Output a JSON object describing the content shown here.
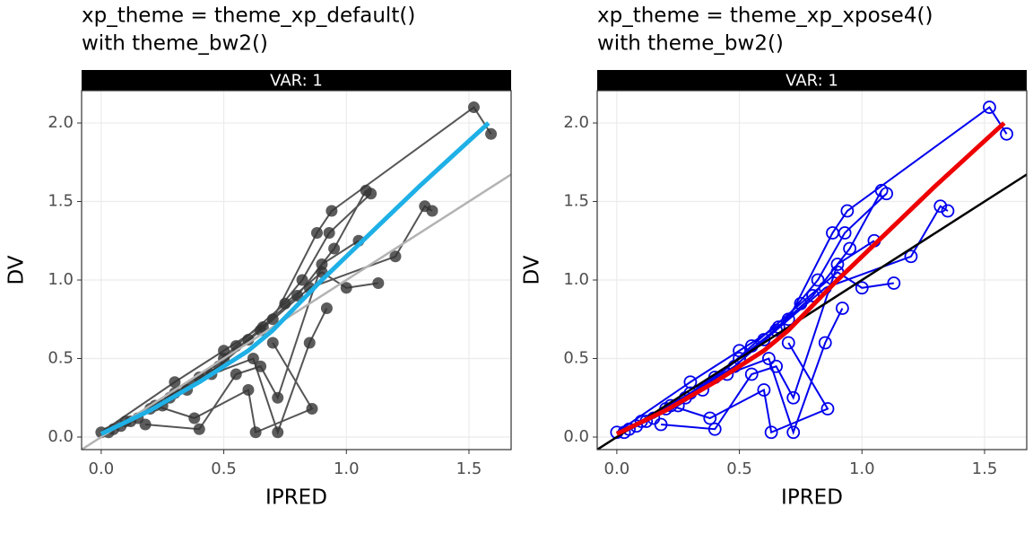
{
  "chart_data": [
    {
      "type": "scatter",
      "title": [
        "xp_theme = theme_xp_default()",
        "with theme_bw2()"
      ],
      "strip": "VAR: 1",
      "x_label": "IPRED",
      "y_label": "DV",
      "xlim": [
        -0.08,
        1.672
      ],
      "ylim": [
        -0.08,
        2.206
      ],
      "xticks": [
        {
          "value": 0,
          "label": "0.0"
        },
        {
          "value": 0.5,
          "label": "0.5"
        },
        {
          "value": 1,
          "label": "1.0"
        },
        {
          "value": 1.5,
          "label": "1.5"
        }
      ],
      "yticks": [
        {
          "value": 0,
          "label": "0.0"
        },
        {
          "value": 0.5,
          "label": "0.5"
        },
        {
          "value": 1,
          "label": "1.0"
        },
        {
          "value": 1.5,
          "label": "1.5"
        },
        {
          "value": 2,
          "label": "2.0"
        }
      ],
      "grid": true,
      "colors": {
        "point": "#333333",
        "point_fill": "#333333",
        "line": "#555555",
        "smooth": "#1eb0e6",
        "reference": "#b3b3b3"
      },
      "reference_line": {
        "intercept": 0,
        "slope": 1
      },
      "smooth": {
        "x": [
          0,
          0.2,
          0.4,
          0.6,
          0.7,
          0.9,
          1.1,
          1.3,
          1.58
        ],
        "values": [
          0.02,
          0.17,
          0.35,
          0.55,
          0.68,
          1.0,
          1.3,
          1.6,
          2.0
        ]
      },
      "individuals": [
        {
          "x": [
            0.05,
            0.2,
            0.4,
            0.6,
            0.8,
            0.95,
            1.08
          ],
          "values": [
            0.05,
            0.18,
            0.38,
            0.62,
            0.9,
            1.2,
            1.57
          ]
        },
        {
          "x": [
            0.03,
            0.25,
            0.45,
            0.62,
            0.72,
            0.85,
            0.92
          ],
          "values": [
            0.03,
            0.2,
            0.4,
            0.5,
            0.03,
            0.6,
            0.82
          ]
        },
        {
          "x": [
            0.1,
            0.3,
            0.5,
            0.66,
            0.82,
            0.93,
            1.1
          ],
          "values": [
            0.1,
            0.28,
            0.5,
            0.7,
            1.0,
            1.3,
            1.55
          ]
        },
        {
          "x": [
            0.08,
            0.22,
            0.38,
            0.6,
            0.63,
            0.86,
            0.7
          ],
          "values": [
            0.07,
            0.2,
            0.12,
            0.3,
            0.03,
            0.18,
            0.6
          ]
        },
        {
          "x": [
            0.15,
            0.35,
            0.55,
            0.75,
            0.9,
            1.0,
            1.13
          ],
          "values": [
            0.12,
            0.3,
            0.58,
            0.85,
            1.05,
            0.95,
            0.98
          ]
        },
        {
          "x": [
            0.12,
            0.28,
            0.48,
            0.65,
            0.85,
            1.2,
            1.32,
            1.35
          ],
          "values": [
            0.1,
            0.25,
            0.45,
            0.68,
            0.95,
            1.15,
            1.47,
            1.44
          ]
        },
        {
          "x": [
            0.18,
            0.4,
            0.55,
            0.65,
            0.72,
            0.9,
            1.05
          ],
          "values": [
            0.08,
            0.05,
            0.4,
            0.45,
            0.25,
            1.1,
            1.25
          ]
        },
        {
          "x": [
            0.0,
            0.3,
            0.5,
            0.7,
            0.88,
            0.94,
            1.52,
            1.59
          ],
          "values": [
            0.03,
            0.35,
            0.55,
            0.75,
            1.3,
            1.44,
            2.1,
            1.93
          ]
        }
      ]
    },
    {
      "type": "scatter",
      "title": [
        "xp_theme = theme_xp_xpose4()",
        "with theme_bw2()"
      ],
      "strip": "VAR: 1",
      "x_label": "IPRED",
      "y_label": "DV",
      "xlim": [
        -0.08,
        1.672
      ],
      "ylim": [
        -0.08,
        2.206
      ],
      "xticks": [
        {
          "value": 0,
          "label": "0.0"
        },
        {
          "value": 0.5,
          "label": "0.5"
        },
        {
          "value": 1,
          "label": "1.0"
        },
        {
          "value": 1.5,
          "label": "1.5"
        }
      ],
      "yticks": [
        {
          "value": 0,
          "label": "0.0"
        },
        {
          "value": 0.5,
          "label": "0.5"
        },
        {
          "value": 1,
          "label": "1.0"
        },
        {
          "value": 1.5,
          "label": "1.5"
        },
        {
          "value": 2,
          "label": "2.0"
        }
      ],
      "grid": true,
      "colors": {
        "point": "#0000ee",
        "point_fill": null,
        "line": "#0000ee",
        "smooth": "#ee0000",
        "reference": "#000000"
      },
      "reference_line": {
        "intercept": 0,
        "slope": 1
      },
      "smooth": {
        "x": [
          0,
          0.2,
          0.4,
          0.6,
          0.7,
          0.9,
          1.1,
          1.3,
          1.58
        ],
        "values": [
          0.02,
          0.17,
          0.35,
          0.55,
          0.68,
          1.0,
          1.3,
          1.6,
          2.0
        ]
      },
      "individuals": [
        {
          "x": [
            0.05,
            0.2,
            0.4,
            0.6,
            0.8,
            0.95,
            1.08
          ],
          "values": [
            0.05,
            0.18,
            0.38,
            0.62,
            0.9,
            1.2,
            1.57
          ]
        },
        {
          "x": [
            0.03,
            0.25,
            0.45,
            0.62,
            0.72,
            0.85,
            0.92
          ],
          "values": [
            0.03,
            0.2,
            0.4,
            0.5,
            0.03,
            0.6,
            0.82
          ]
        },
        {
          "x": [
            0.1,
            0.3,
            0.5,
            0.66,
            0.82,
            0.93,
            1.1
          ],
          "values": [
            0.1,
            0.28,
            0.5,
            0.7,
            1.0,
            1.3,
            1.55
          ]
        },
        {
          "x": [
            0.08,
            0.22,
            0.38,
            0.6,
            0.63,
            0.86,
            0.7
          ],
          "values": [
            0.07,
            0.2,
            0.12,
            0.3,
            0.03,
            0.18,
            0.6
          ]
        },
        {
          "x": [
            0.15,
            0.35,
            0.55,
            0.75,
            0.9,
            1.0,
            1.13
          ],
          "values": [
            0.12,
            0.3,
            0.58,
            0.85,
            1.05,
            0.95,
            0.98
          ]
        },
        {
          "x": [
            0.12,
            0.28,
            0.48,
            0.65,
            0.85,
            1.2,
            1.32,
            1.35
          ],
          "values": [
            0.1,
            0.25,
            0.45,
            0.68,
            0.95,
            1.15,
            1.47,
            1.44
          ]
        },
        {
          "x": [
            0.18,
            0.4,
            0.55,
            0.65,
            0.72,
            0.9,
            1.05
          ],
          "values": [
            0.08,
            0.05,
            0.4,
            0.45,
            0.25,
            1.1,
            1.25
          ]
        },
        {
          "x": [
            0.0,
            0.3,
            0.5,
            0.7,
            0.88,
            0.94,
            1.52,
            1.59
          ],
          "values": [
            0.03,
            0.35,
            0.55,
            0.75,
            1.3,
            1.44,
            2.1,
            1.93
          ]
        }
      ]
    }
  ]
}
